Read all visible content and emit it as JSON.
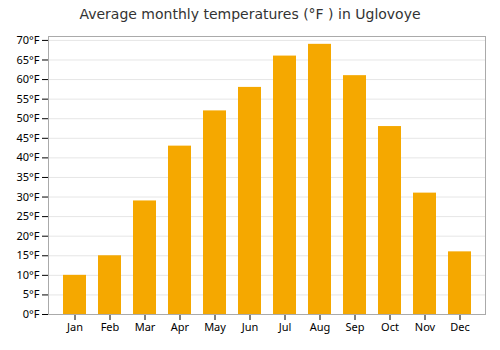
{
  "chart_data": {
    "type": "bar",
    "title": "Average monthly temperatures (°F ) in Uglovoye",
    "categories": [
      "Jan",
      "Feb",
      "Mar",
      "Apr",
      "May",
      "Jun",
      "Jul",
      "Aug",
      "Sep",
      "Oct",
      "Nov",
      "Dec"
    ],
    "values": [
      10,
      15,
      29,
      43,
      52,
      58,
      66,
      69,
      61,
      48,
      31,
      16
    ],
    "color": "#F5A800",
    "ylim": [
      0,
      71
    ],
    "yticks": [
      {
        "value": 0,
        "label": "0°F"
      },
      {
        "value": 5,
        "label": "5°F"
      },
      {
        "value": 10,
        "label": "10°F"
      },
      {
        "value": 15,
        "label": "15°F"
      },
      {
        "value": 20,
        "label": "20°F"
      },
      {
        "value": 25,
        "label": "25°F"
      },
      {
        "value": 30,
        "label": "30°F"
      },
      {
        "value": 35,
        "label": "35°F"
      },
      {
        "value": 40,
        "label": "40°F"
      },
      {
        "value": 45,
        "label": "45°F"
      },
      {
        "value": 50,
        "label": "50°F"
      },
      {
        "value": 55,
        "label": "55°F"
      },
      {
        "value": 60,
        "label": "60°F"
      },
      {
        "value": 65,
        "label": "65°F"
      },
      {
        "value": 70,
        "label": "70°F"
      }
    ],
    "grid": true
  }
}
